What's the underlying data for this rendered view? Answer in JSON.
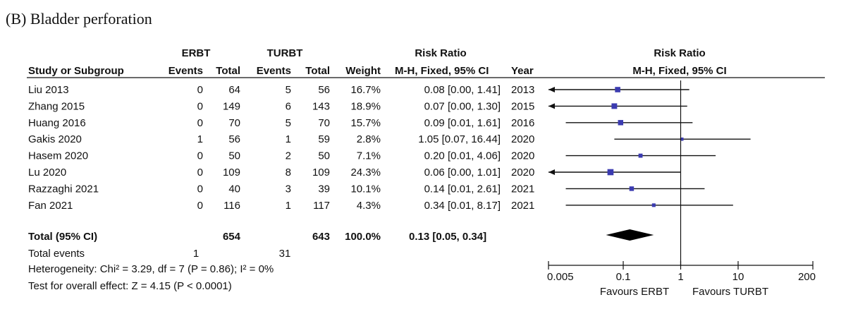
{
  "panel_title": "(B) Bladder perforation",
  "chart_data": {
    "type": "forest",
    "columns": {
      "group1": "ERBT",
      "group2": "TURBT",
      "study": "Study or Subgroup",
      "events1": "Events",
      "total1": "Total",
      "events2": "Events",
      "total2": "Total",
      "weight": "Weight",
      "effect_title": "Risk Ratio",
      "effect_method": "M-H, Fixed, 95% CI",
      "year": "Year",
      "plot_title": "Risk Ratio",
      "plot_method": "M-H, Fixed, 95% CI"
    },
    "studies": [
      {
        "name": "Liu 2013",
        "events1": 0,
        "total1": 64,
        "events2": 5,
        "total2": 56,
        "weight": "16.7%",
        "ci_text": "0.08 [0.00, 1.41]",
        "year": "2013",
        "rr": 0.08,
        "lower": 0.0,
        "upper": 1.41,
        "w": 16.7
      },
      {
        "name": "Zhang 2015",
        "events1": 0,
        "total1": 149,
        "events2": 6,
        "total2": 143,
        "weight": "18.9%",
        "ci_text": "0.07 [0.00, 1.30]",
        "year": "2015",
        "rr": 0.07,
        "lower": 0.0,
        "upper": 1.3,
        "w": 18.9
      },
      {
        "name": "Huang 2016",
        "events1": 0,
        "total1": 70,
        "events2": 5,
        "total2": 70,
        "weight": "15.7%",
        "ci_text": "0.09 [0.01, 1.61]",
        "year": "2016",
        "rr": 0.09,
        "lower": 0.01,
        "upper": 1.61,
        "w": 15.7
      },
      {
        "name": "Gakis 2020",
        "events1": 1,
        "total1": 56,
        "events2": 1,
        "total2": 59,
        "weight": "2.8%",
        "ci_text": "1.05 [0.07, 16.44]",
        "year": "2020",
        "rr": 1.05,
        "lower": 0.07,
        "upper": 16.44,
        "w": 2.8
      },
      {
        "name": "Hasem 2020",
        "events1": 0,
        "total1": 50,
        "events2": 2,
        "total2": 50,
        "weight": "7.1%",
        "ci_text": "0.20 [0.01, 4.06]",
        "year": "2020",
        "rr": 0.2,
        "lower": 0.01,
        "upper": 4.06,
        "w": 7.1
      },
      {
        "name": "Lu 2020",
        "events1": 0,
        "total1": 109,
        "events2": 8,
        "total2": 109,
        "weight": "24.3%",
        "ci_text": "0.06 [0.00, 1.01]",
        "year": "2020",
        "rr": 0.06,
        "lower": 0.0,
        "upper": 1.01,
        "w": 24.3
      },
      {
        "name": "Razzaghi 2021",
        "events1": 0,
        "total1": 40,
        "events2": 3,
        "total2": 39,
        "weight": "10.1%",
        "ci_text": "0.14 [0.01, 2.61]",
        "year": "2021",
        "rr": 0.14,
        "lower": 0.01,
        "upper": 2.61,
        "w": 10.1
      },
      {
        "name": "Fan 2021",
        "events1": 0,
        "total1": 116,
        "events2": 1,
        "total2": 117,
        "weight": "4.3%",
        "ci_text": "0.34 [0.01, 8.17]",
        "year": "2021",
        "rr": 0.34,
        "lower": 0.01,
        "upper": 8.17,
        "w": 4.3
      }
    ],
    "total": {
      "label": "Total (95% CI)",
      "total1": 654,
      "total2": 643,
      "weight": "100.0%",
      "ci_text": "0.13 [0.05, 0.34]",
      "rr": 0.13,
      "lower": 0.05,
      "upper": 0.34
    },
    "total_events": {
      "label": "Total events",
      "events1": 1,
      "events2": 31
    },
    "heterogeneity": "Heterogeneity: Chi² = 3.29, df = 7 (P = 0.86); I² = 0%",
    "overall_effect": "Test for overall effect: Z = 4.15 (P < 0.0001)",
    "x_axis": {
      "scale": "log",
      "ticks": [
        0.005,
        0.1,
        1,
        10,
        200
      ],
      "tick_labels": [
        "0.005",
        "0.1",
        "1",
        "10",
        "200"
      ],
      "xlim": [
        0.005,
        200
      ]
    },
    "favours_left": "Favours ERBT",
    "favours_right": "Favours TURBT",
    "colors": {
      "marker": "#3b3bb0",
      "line": "#111111",
      "diamond": "#000000"
    }
  }
}
